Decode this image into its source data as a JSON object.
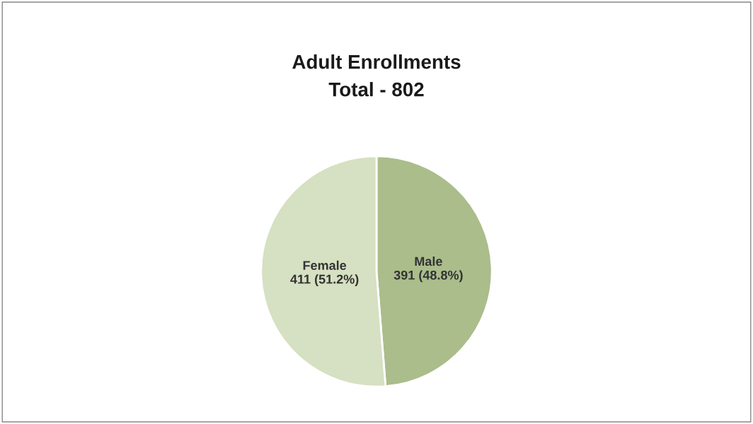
{
  "chart_data": {
    "type": "pie",
    "title": "Adult Enrollments",
    "subtitle": "Total - 802",
    "categories": [
      "Male",
      "Female"
    ],
    "values": [
      391,
      411
    ],
    "colors": [
      "#aabd8b",
      "#d6e0c2"
    ],
    "value_labels": [
      "391 (48.8%)",
      "411 (51.2%)"
    ],
    "legend": false
  }
}
